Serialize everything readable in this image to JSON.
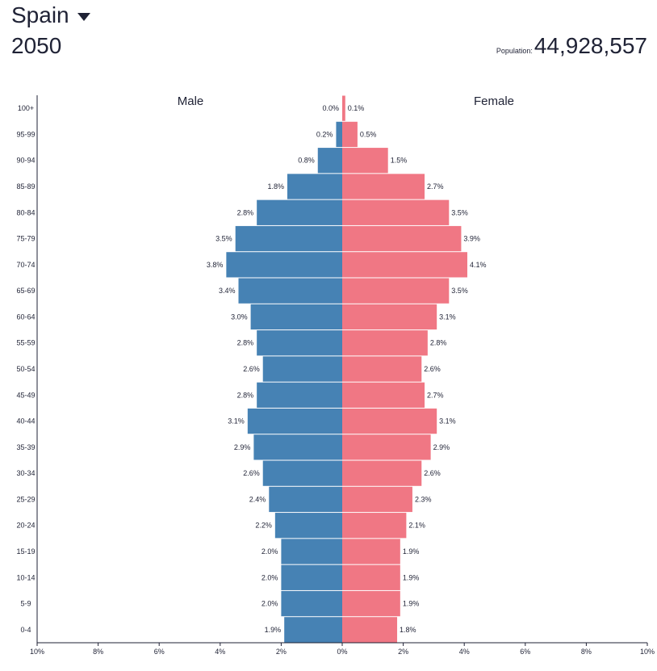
{
  "header": {
    "country": "Spain",
    "year": "2050",
    "population_label": "Population:",
    "population_value": "44,928,557"
  },
  "colors": {
    "male": "#4682b4",
    "female": "#f07784",
    "text": "#1f2235",
    "axis": "#1f2235"
  },
  "icons": {
    "dropdown": "caret-down-icon"
  },
  "chart_data": {
    "type": "bar",
    "orientation": "horizontal-population-pyramid",
    "categories": [
      "100+",
      "95-99",
      "90-94",
      "85-89",
      "80-84",
      "75-79",
      "70-74",
      "65-69",
      "60-64",
      "55-59",
      "50-54",
      "45-49",
      "40-44",
      "35-39",
      "30-34",
      "25-29",
      "20-24",
      "15-19",
      "10-14",
      "5-9",
      "0-4"
    ],
    "series": [
      {
        "name": "Male",
        "values": [
          0.0,
          0.2,
          0.8,
          1.8,
          2.8,
          3.5,
          3.8,
          3.4,
          3.0,
          2.8,
          2.6,
          2.8,
          3.1,
          2.9,
          2.6,
          2.4,
          2.2,
          2.0,
          2.0,
          2.0,
          1.9
        ],
        "labels": [
          "0.0%",
          "0.2%",
          "0.8%",
          "1.8%",
          "2.8%",
          "3.5%",
          "3.8%",
          "3.4%",
          "3.0%",
          "2.8%",
          "2.6%",
          "2.8%",
          "3.1%",
          "2.9%",
          "2.6%",
          "2.4%",
          "2.2%",
          "2.0%",
          "2.0%",
          "2.0%",
          "1.9%"
        ]
      },
      {
        "name": "Female",
        "values": [
          0.1,
          0.5,
          1.5,
          2.7,
          3.5,
          3.9,
          4.1,
          3.5,
          3.1,
          2.8,
          2.6,
          2.7,
          3.1,
          2.9,
          2.6,
          2.3,
          2.1,
          1.9,
          1.9,
          1.9,
          1.8
        ],
        "labels": [
          "0.1%",
          "0.5%",
          "1.5%",
          "2.7%",
          "3.5%",
          "3.9%",
          "4.1%",
          "3.5%",
          "3.1%",
          "2.8%",
          "2.6%",
          "2.7%",
          "3.1%",
          "2.9%",
          "2.6%",
          "2.3%",
          "2.1%",
          "1.9%",
          "1.9%",
          "1.9%",
          "1.8%"
        ]
      }
    ],
    "x_ticks": [
      "10%",
      "8%",
      "6%",
      "4%",
      "2%",
      "0%",
      "2%",
      "4%",
      "6%",
      "8%",
      "10%"
    ],
    "xlim": [
      -10,
      10
    ],
    "grid": false,
    "legend": "none"
  }
}
